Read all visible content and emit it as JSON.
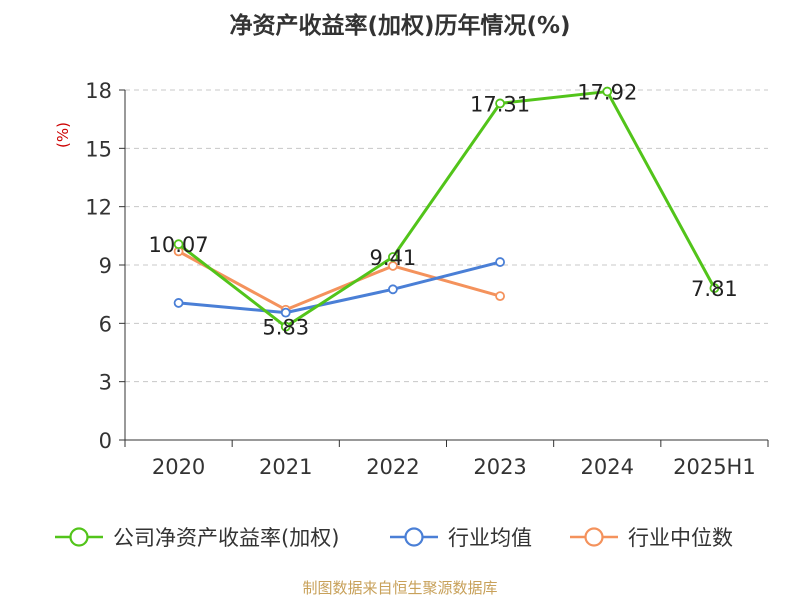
{
  "chart_data": {
    "type": "line",
    "title": "净资产收益率(加权)历年情况(%)",
    "ylabel": "(%)",
    "xlabel": "",
    "categories": [
      "2020",
      "2021",
      "2022",
      "2023",
      "2024",
      "2025H1"
    ],
    "ylim": [
      0,
      18
    ],
    "yticks": [
      0,
      3,
      6,
      9,
      12,
      15,
      18
    ],
    "grid": true,
    "legend_position": "bottom",
    "series": [
      {
        "name": "公司净资产收益率(加权)",
        "color": "#52c41a",
        "values": [
          10.07,
          5.83,
          9.41,
          17.31,
          17.92,
          7.81
        ],
        "labels": [
          "10.07",
          "5.83",
          "9.41",
          "17.31",
          "17.92",
          "7.81"
        ]
      },
      {
        "name": "行业均值",
        "color": "#4a7fd6",
        "values": [
          7.05,
          6.55,
          7.75,
          9.15,
          null,
          null
        ]
      },
      {
        "name": "行业中位数",
        "color": "#f4925c",
        "values": [
          9.7,
          6.7,
          8.95,
          7.4,
          null,
          null
        ]
      }
    ]
  },
  "footer": "制图数据来自恒生聚源数据库"
}
